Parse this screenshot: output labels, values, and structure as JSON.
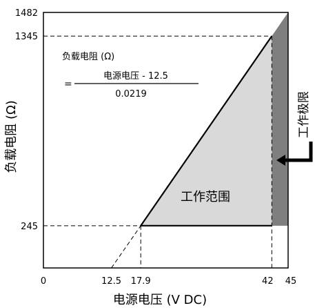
{
  "chart_data": {
    "type": "area",
    "title": "",
    "xlabel": "电源电压 (V DC)",
    "ylabel": "负载电阻 (Ω)",
    "xlim": [
      0,
      45
    ],
    "ylim": [
      0,
      1482
    ],
    "x_ticks": [
      "0",
      "12.5",
      "17.9",
      "42",
      "45"
    ],
    "x_tick_values": [
      0,
      12.5,
      17.9,
      42,
      45
    ],
    "y_ticks": [
      "245",
      "1345",
      "1482"
    ],
    "y_tick_values": [
      245,
      1345,
      1482
    ],
    "grid": false,
    "series": [
      {
        "name": "负载电阻上限线",
        "x": [
          17.9,
          42
        ],
        "y": [
          245,
          1345
        ]
      },
      {
        "name": "负载电阻下限线",
        "x": [
          17.9,
          42
        ],
        "y": [
          245,
          245
        ]
      },
      {
        "name": "延长线",
        "x": [
          12.5,
          17.9
        ],
        "y": [
          0,
          245
        ]
      }
    ],
    "operating_region": {
      "label": "工作范围",
      "color": "#d9d9d9",
      "vertices": [
        [
          17.9,
          245
        ],
        [
          42,
          1345
        ],
        [
          42,
          245
        ]
      ]
    },
    "operating_limit": {
      "label": "工作极限",
      "color": "#7f7f7f",
      "x_from": 42,
      "x_to": 45,
      "vertices": [
        [
          42,
          245
        ],
        [
          42,
          1345
        ],
        [
          45,
          1482
        ],
        [
          45,
          245
        ]
      ]
    },
    "formula": {
      "label": "负载电阻 (Ω)",
      "equals": "=",
      "numerator": "电源电压 - 12.5",
      "denominator": "0.0219"
    },
    "arrow": "left-arrow-icon"
  }
}
